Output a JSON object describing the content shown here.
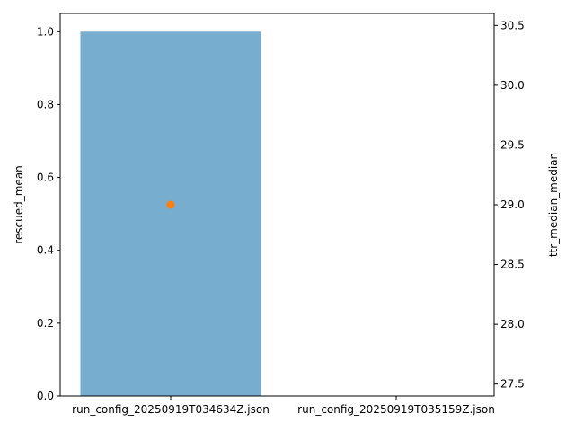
{
  "chart_data": {
    "type": "bar",
    "categories": [
      "run_config_20250919T034634Z.json",
      "run_config_20250919T035159Z.json"
    ],
    "series": [
      {
        "name": "rescued_mean",
        "axis": "left",
        "kind": "bar",
        "values": [
          1.0,
          null
        ]
      },
      {
        "name": "ttr_median_median",
        "axis": "right",
        "kind": "point",
        "values": [
          29.0,
          null
        ]
      }
    ],
    "ylabel": "rescued_mean",
    "y2label": "ttr_median_median",
    "ylim": [
      0,
      1.05
    ],
    "y2lim": [
      27.4,
      30.6
    ],
    "yticks": [
      "0.0",
      "0.2",
      "0.4",
      "0.6",
      "0.8",
      "1.0"
    ],
    "y2ticks": [
      "27.5",
      "28.0",
      "28.5",
      "29.0",
      "29.5",
      "30.0",
      "30.5"
    ],
    "grid": false,
    "colors": {
      "bar": "#77adcf",
      "point": "#ff7f0e",
      "left_label": "#1f77b4",
      "right_label": "#ff7f0e"
    }
  }
}
